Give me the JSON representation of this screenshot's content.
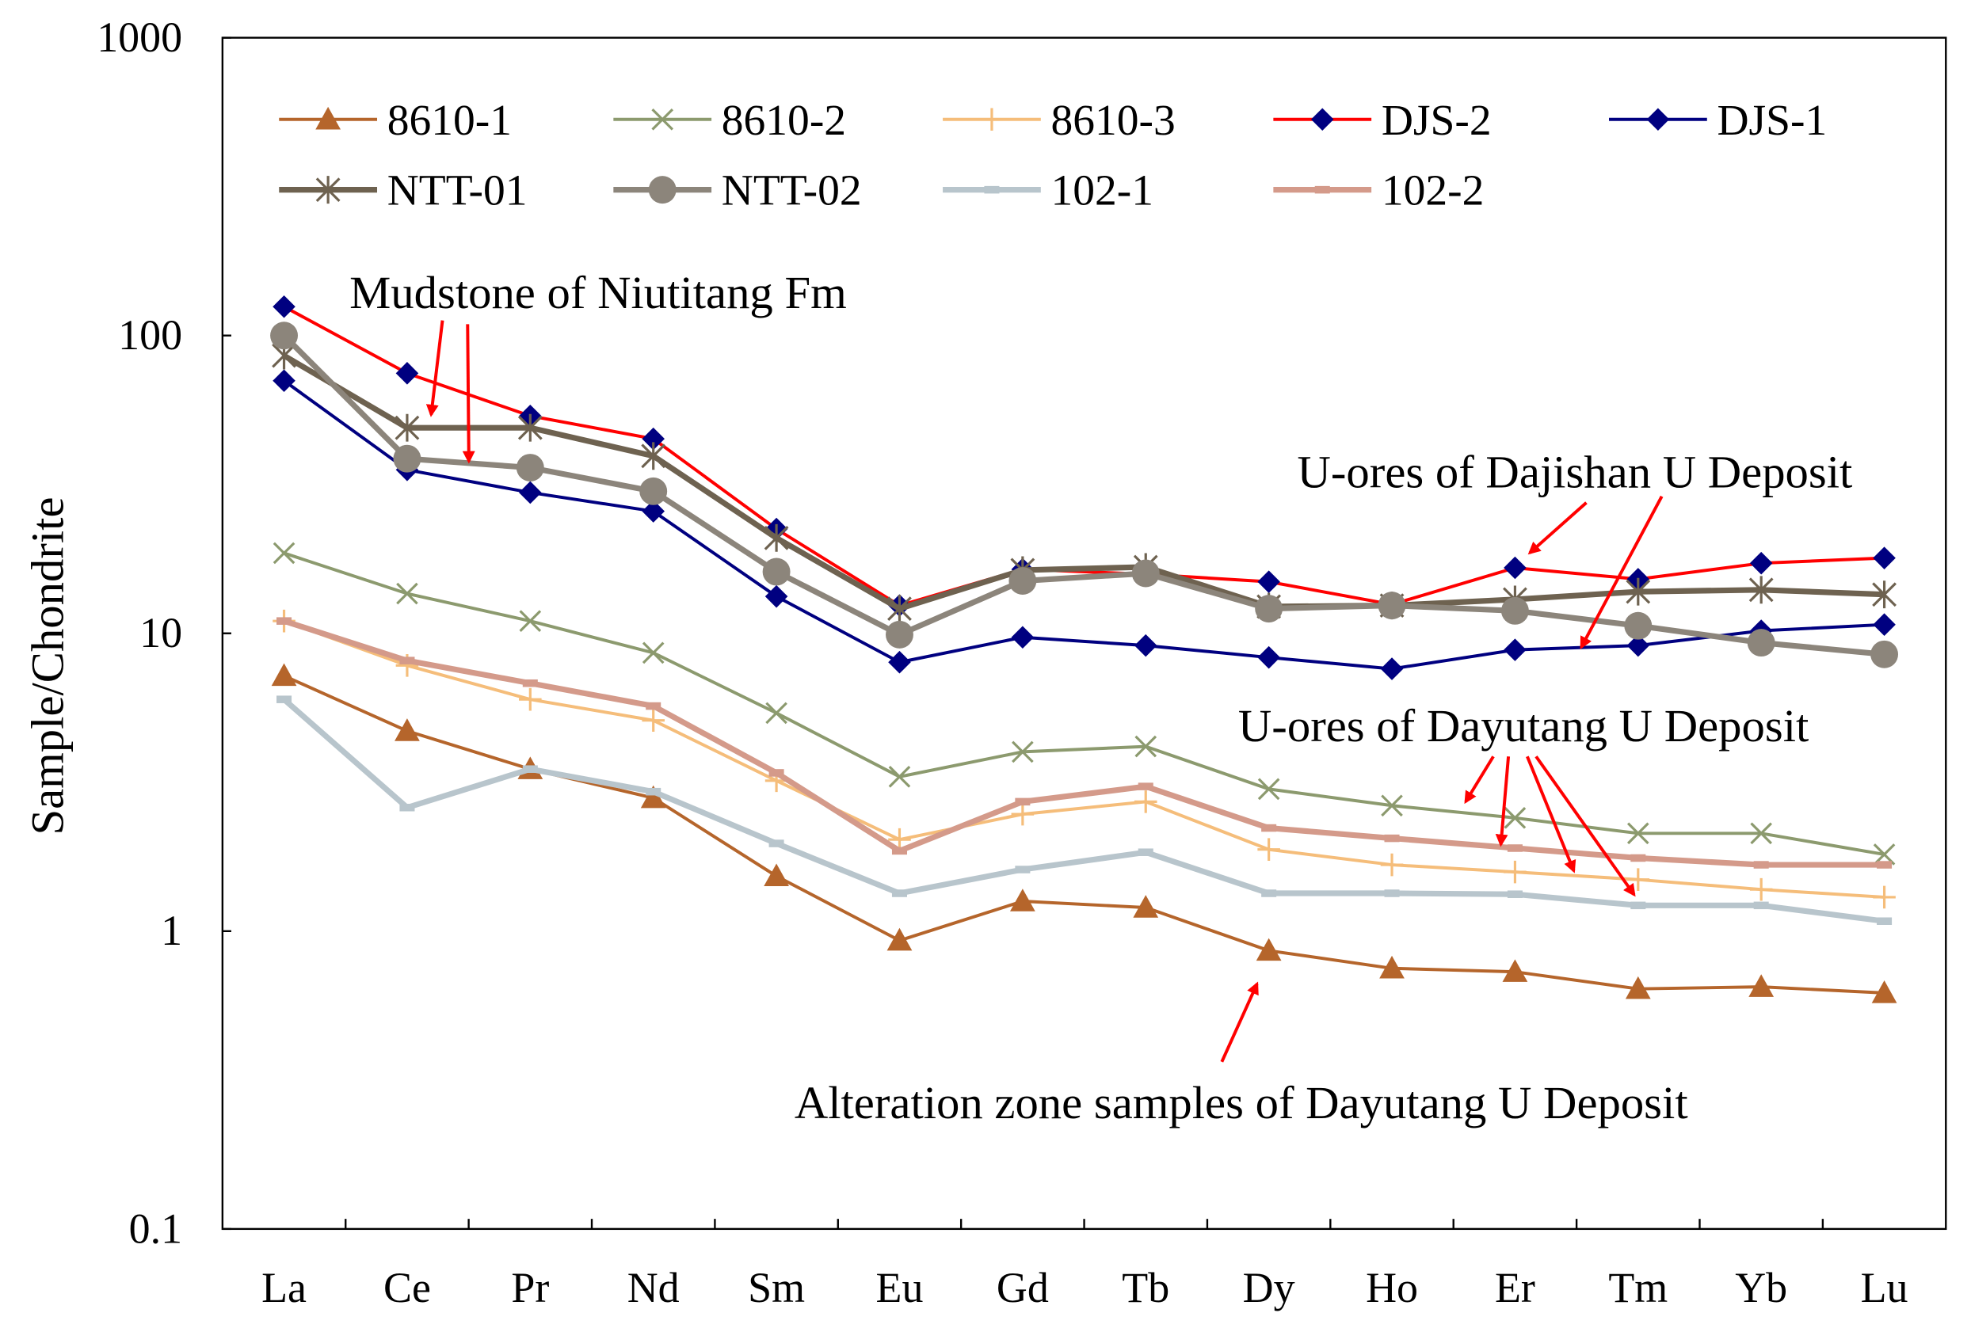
{
  "chart_data": {
    "type": "line",
    "title": "",
    "xlabel": "",
    "ylabel": "Sample/Chondrite",
    "yscale": "log",
    "ylim": [
      0.1,
      1000
    ],
    "yticks": [
      "0.1",
      "1",
      "10",
      "100",
      "1000"
    ],
    "categories": [
      "La",
      "Ce",
      "Pr",
      "Nd",
      "Sm",
      "Eu",
      "Gd",
      "Tb",
      "Dy",
      "Ho",
      "Er",
      "Tm",
      "Yb",
      "Lu"
    ],
    "grid": false,
    "legend_position": "top",
    "series": [
      {
        "name": "8610-1",
        "color": "#b5652b",
        "marker": "triangle",
        "values": [
          7.2,
          4.7,
          3.5,
          2.8,
          1.53,
          0.93,
          1.26,
          1.2,
          0.86,
          0.75,
          0.73,
          0.64,
          0.65,
          0.62
        ]
      },
      {
        "name": "8610-2",
        "color": "#8c9a6e",
        "marker": "x",
        "values": [
          18.6,
          13.6,
          11,
          8.6,
          5.4,
          3.3,
          4.0,
          4.17,
          3.0,
          2.64,
          2.4,
          2.13,
          2.13,
          1.81
        ]
      },
      {
        "name": "8610-3",
        "color": "#f5bd7a",
        "marker": "plus",
        "values": [
          11,
          7.8,
          6.0,
          5.1,
          3.2,
          2.03,
          2.47,
          2.72,
          1.88,
          1.67,
          1.58,
          1.49,
          1.38,
          1.3
        ]
      },
      {
        "name": "DJS-2",
        "color": "#ff0000",
        "marker": "diamond",
        "marker_color": "#000080",
        "values": [
          125,
          74.7,
          53.7,
          45,
          22.4,
          12.4,
          16.4,
          15.8,
          14.9,
          12.5,
          16.6,
          15.2,
          17.2,
          17.9
        ]
      },
      {
        "name": "DJS-1",
        "color": "#000080",
        "marker": "diamond",
        "marker_color": "#000080",
        "values": [
          70.5,
          35.4,
          29.7,
          25.7,
          13.3,
          8.0,
          9.7,
          9.1,
          8.3,
          7.6,
          8.8,
          9.1,
          10.2,
          10.7
        ]
      },
      {
        "name": "NTT-01",
        "color": "#6e6250",
        "marker": "asterisk",
        "values": [
          85.6,
          49,
          49,
          39.4,
          20.9,
          12.1,
          16.3,
          16.7,
          12.3,
          12.4,
          13,
          13.8,
          14,
          13.5
        ]
      },
      {
        "name": "NTT-02",
        "color": "#8c857b",
        "marker": "circle",
        "values": [
          100,
          38.6,
          36,
          30,
          16.1,
          9.9,
          15,
          15.9,
          12.1,
          12.4,
          11.9,
          10.6,
          9.3,
          8.5
        ]
      },
      {
        "name": "102-1",
        "color": "#b8c5cc",
        "marker": "dash",
        "values": [
          6.0,
          2.6,
          3.5,
          2.94,
          1.97,
          1.34,
          1.61,
          1.84,
          1.34,
          1.34,
          1.33,
          1.22,
          1.22,
          1.08
        ]
      },
      {
        "name": "102-2",
        "color": "#d49a8a",
        "marker": "dash",
        "values": [
          11,
          8.1,
          6.8,
          5.7,
          3.4,
          1.86,
          2.72,
          3.06,
          2.22,
          2.05,
          1.9,
          1.76,
          1.67,
          1.67
        ]
      }
    ],
    "annotations": [
      "Mudstone of Niutitang Fm",
      "U-ores of Dajishan U Deposit",
      "U-ores of Dayutang U Deposit",
      "Alteration zone samples of Dayutang U Deposit"
    ],
    "annotation_color": "#ff0000"
  }
}
